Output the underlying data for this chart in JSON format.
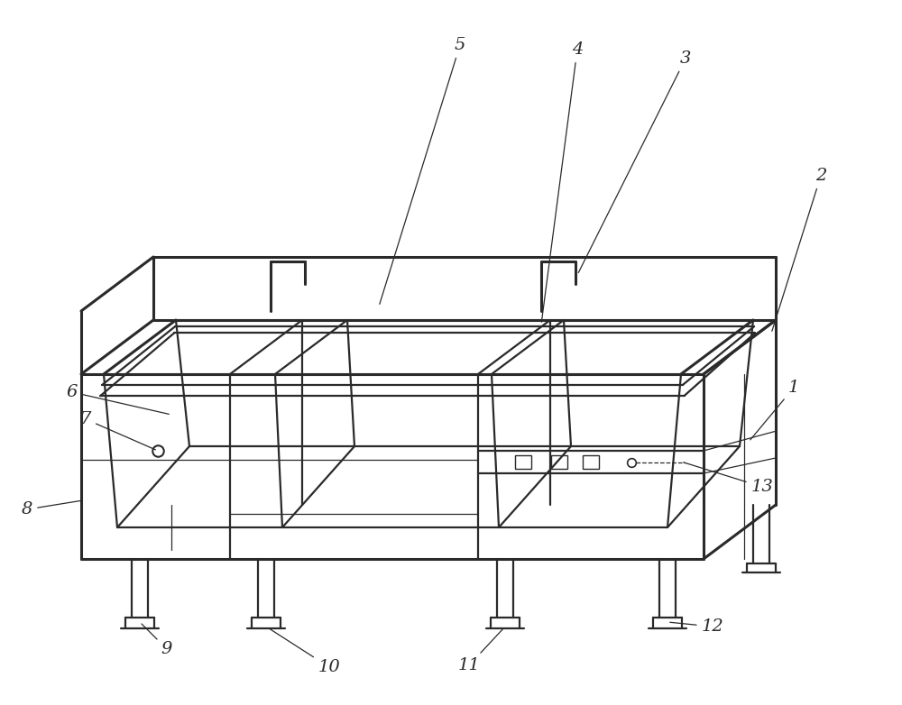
{
  "bg_color": "#ffffff",
  "line_color": "#2a2a2a",
  "lw_main": 1.6,
  "lw_thin": 0.9,
  "lw_thick": 2.2,
  "label_fontsize": 14,
  "figsize": [
    10.0,
    7.82
  ],
  "dpi": 100
}
